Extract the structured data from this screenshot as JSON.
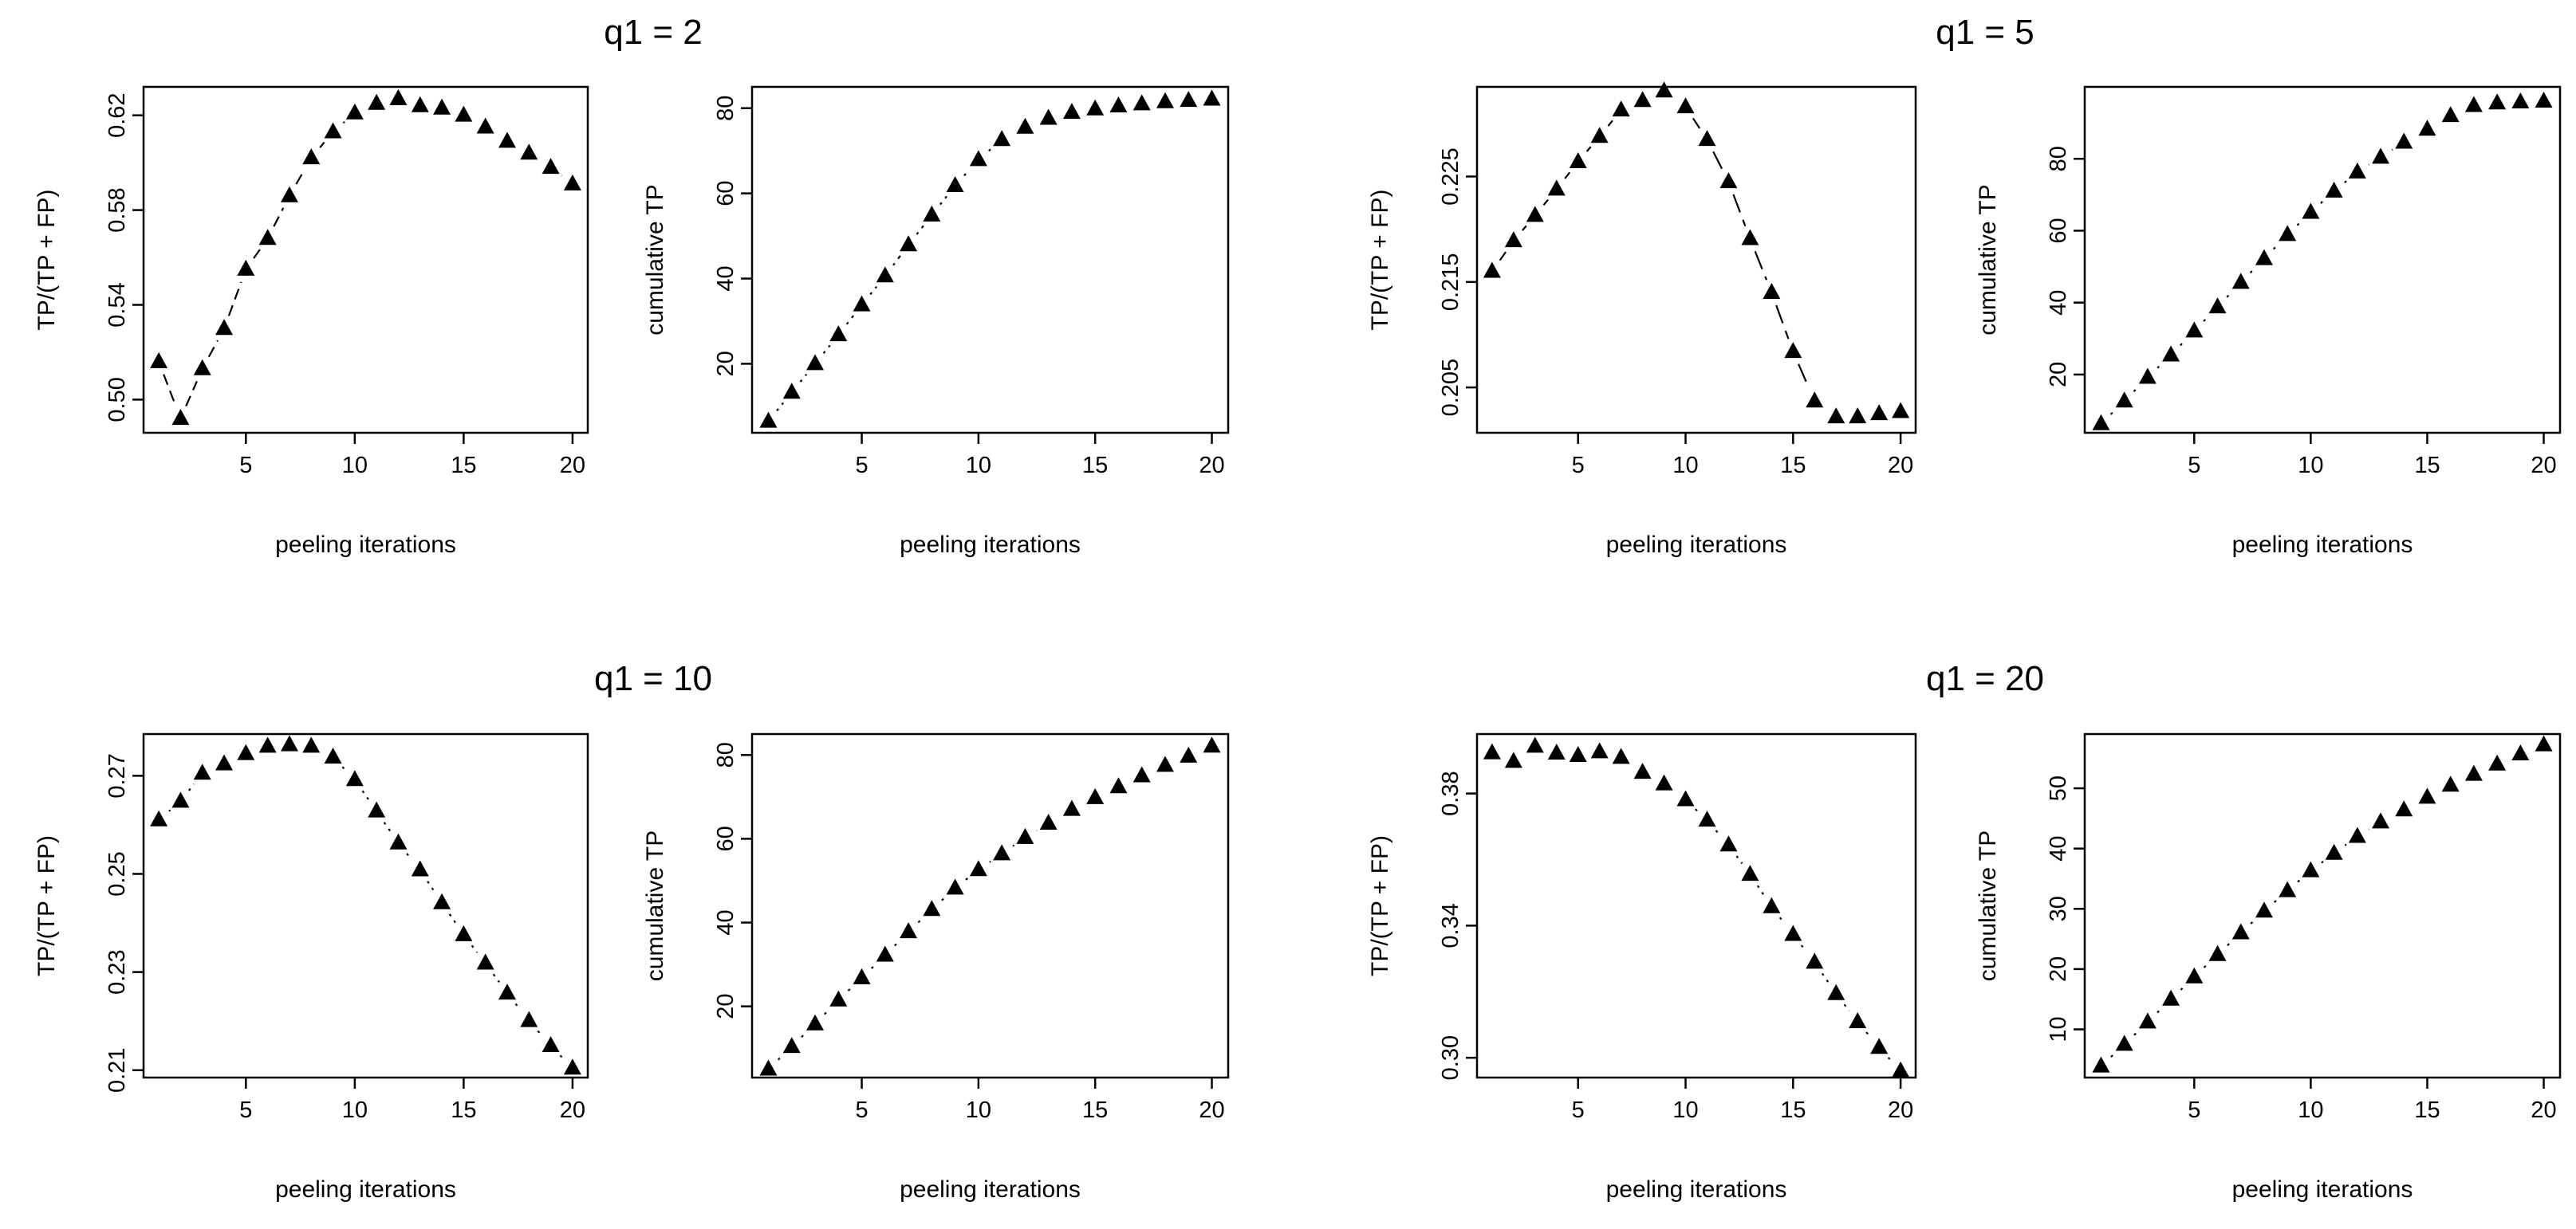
{
  "figure": {
    "groups": [
      {
        "title": "q1 = 2"
      },
      {
        "title": "q1 = 5"
      },
      {
        "title": "q1 = 10"
      },
      {
        "title": "q1 = 20"
      }
    ]
  },
  "chart_data": [
    {
      "type": "line",
      "group": "q1 = 2",
      "title": "",
      "xlabel": "peeling iterations",
      "ylabel": "TP/(TP + FP)",
      "xlim": [
        0.3,
        20.7
      ],
      "ylim": [
        0.486,
        0.632
      ],
      "xticks": [
        5,
        10,
        15,
        20
      ],
      "yticks": [
        0.5,
        0.54,
        0.58,
        0.62
      ],
      "ytick_labels": [
        "0.50",
        "0.54",
        "0.58",
        "0.62"
      ],
      "line_style": "dashed",
      "marker": "triangle",
      "x": [
        1,
        2,
        3,
        4,
        5,
        6,
        7,
        8,
        9,
        10,
        11,
        12,
        13,
        14,
        15,
        16,
        17,
        18,
        19,
        20
      ],
      "y": [
        0.516,
        0.492,
        0.513,
        0.53,
        0.555,
        0.568,
        0.586,
        0.602,
        0.613,
        0.621,
        0.625,
        0.627,
        0.624,
        0.623,
        0.62,
        0.615,
        0.609,
        0.604,
        0.598,
        0.591
      ]
    },
    {
      "type": "line",
      "group": "q1 = 2",
      "title": "",
      "xlabel": "peeling iterations",
      "ylabel": "cumulative TP",
      "xlim": [
        0.3,
        20.7
      ],
      "ylim": [
        3.8,
        85
      ],
      "xticks": [
        5,
        10,
        15,
        20
      ],
      "yticks": [
        20,
        40,
        60,
        80
      ],
      "ytick_labels": [
        "20",
        "40",
        "60",
        "80"
      ],
      "line_style": "dotdash",
      "marker": "triangle",
      "x": [
        1,
        2,
        3,
        4,
        5,
        6,
        7,
        8,
        9,
        10,
        11,
        12,
        13,
        14,
        15,
        16,
        17,
        18,
        19,
        20
      ],
      "y": [
        6.5,
        13.3,
        20.0,
        26.8,
        33.8,
        40.6,
        47.9,
        54.9,
        61.8,
        67.9,
        72.6,
        75.5,
        77.6,
        79.0,
        79.8,
        80.5,
        81.0,
        81.5,
        81.8,
        82.1
      ]
    },
    {
      "type": "line",
      "group": "q1 = 5",
      "title": "",
      "xlabel": "peeling iterations",
      "ylabel": "TP/(TP + FP)",
      "xlim": [
        0.3,
        20.7
      ],
      "ylim": [
        0.2007,
        0.2335
      ],
      "xticks": [
        5,
        10,
        15,
        20
      ],
      "yticks": [
        0.205,
        0.215,
        0.225
      ],
      "ytick_labels": [
        "0.205",
        "0.215",
        "0.225"
      ],
      "line_style": "longdash",
      "marker": "triangle",
      "x": [
        1,
        2,
        3,
        4,
        5,
        6,
        7,
        8,
        9,
        10,
        11,
        12,
        13,
        14,
        15,
        16,
        17,
        18,
        19,
        20
      ],
      "y": [
        0.216,
        0.2189,
        0.2213,
        0.2238,
        0.2264,
        0.2288,
        0.2313,
        0.2322,
        0.2331,
        0.2316,
        0.2285,
        0.2245,
        0.2191,
        0.214,
        0.2084,
        0.2037,
        0.2022,
        0.2022,
        0.2025,
        0.2027
      ]
    },
    {
      "type": "line",
      "group": "q1 = 5",
      "title": "",
      "xlabel": "peeling iterations",
      "ylabel": "cumulative TP",
      "xlim": [
        0.3,
        20.7
      ],
      "ylim": [
        3.8,
        100
      ],
      "xticks": [
        5,
        10,
        15,
        20
      ],
      "yticks": [
        20,
        40,
        60,
        80
      ],
      "ytick_labels": [
        "20",
        "40",
        "60",
        "80"
      ],
      "line_style": "dotdash",
      "marker": "triangle",
      "x": [
        1,
        2,
        3,
        4,
        5,
        6,
        7,
        8,
        9,
        10,
        11,
        12,
        13,
        14,
        15,
        16,
        17,
        18,
        19,
        20
      ],
      "y": [
        6.3,
        12.6,
        19.2,
        25.4,
        32.1,
        38.8,
        45.6,
        52.2,
        58.9,
        65.1,
        71.0,
        76.3,
        80.4,
        84.6,
        88.2,
        92.0,
        94.8,
        95.5,
        95.8,
        96.0
      ]
    },
    {
      "type": "line",
      "group": "q1 = 10",
      "title": "",
      "xlabel": "peeling iterations",
      "ylabel": "TP/(TP + FP)",
      "xlim": [
        0.3,
        20.7
      ],
      "ylim": [
        0.2085,
        0.2785
      ],
      "xticks": [
        5,
        10,
        15,
        20
      ],
      "yticks": [
        0.21,
        0.23,
        0.25,
        0.27
      ],
      "ytick_labels": [
        "0.21",
        "0.23",
        "0.25",
        "0.27"
      ],
      "line_style": "dotted",
      "marker": "triangle",
      "x": [
        1,
        2,
        3,
        4,
        5,
        6,
        7,
        8,
        9,
        10,
        11,
        12,
        13,
        14,
        15,
        16,
        17,
        18,
        19,
        20
      ],
      "y": [
        0.261,
        0.2648,
        0.2705,
        0.2724,
        0.2745,
        0.276,
        0.2763,
        0.276,
        0.2738,
        0.2692,
        0.2628,
        0.2563,
        0.2508,
        0.2441,
        0.2376,
        0.2318,
        0.2257,
        0.2201,
        0.215,
        0.2104
      ]
    },
    {
      "type": "line",
      "group": "q1 = 10",
      "title": "",
      "xlabel": "peeling iterations",
      "ylabel": "cumulative TP",
      "xlim": [
        0.3,
        20.7
      ],
      "ylim": [
        3,
        85
      ],
      "xticks": [
        5,
        10,
        15,
        20
      ],
      "yticks": [
        20,
        40,
        60,
        80
      ],
      "ytick_labels": [
        "20",
        "40",
        "60",
        "80"
      ],
      "line_style": "dotdash",
      "marker": "triangle",
      "x": [
        1,
        2,
        3,
        4,
        5,
        6,
        7,
        8,
        9,
        10,
        11,
        12,
        13,
        14,
        15,
        16,
        17,
        18,
        19,
        20
      ],
      "y": [
        5.0,
        10.4,
        15.8,
        21.5,
        26.8,
        32.2,
        37.8,
        43.1,
        48.2,
        52.6,
        56.4,
        60.3,
        63.7,
        67.0,
        69.8,
        72.4,
        75.0,
        77.5,
        79.7,
        82.1
      ]
    },
    {
      "type": "line",
      "group": "q1 = 20",
      "title": "",
      "xlabel": "peeling iterations",
      "ylabel": "TP/(TP + FP)",
      "xlim": [
        0.3,
        20.7
      ],
      "ylim": [
        0.294,
        0.398
      ],
      "xticks": [
        5,
        10,
        15,
        20
      ],
      "yticks": [
        0.3,
        0.34,
        0.38
      ],
      "ytick_labels": [
        "0.30",
        "0.34",
        "0.38"
      ],
      "line_style": "dotted",
      "marker": "triangle",
      "x": [
        1,
        2,
        3,
        4,
        5,
        6,
        7,
        8,
        9,
        10,
        11,
        12,
        13,
        14,
        15,
        16,
        17,
        18,
        19,
        20
      ],
      "y": [
        0.3923,
        0.3897,
        0.3943,
        0.3922,
        0.3915,
        0.3926,
        0.3909,
        0.3864,
        0.3829,
        0.3781,
        0.3719,
        0.3644,
        0.3555,
        0.3457,
        0.3373,
        0.3289,
        0.3194,
        0.3109,
        0.3031,
        0.296
      ]
    },
    {
      "type": "line",
      "group": "q1 = 20",
      "title": "",
      "xlabel": "peeling iterations",
      "ylabel": "cumulative TP",
      "xlim": [
        0.3,
        20.7
      ],
      "ylim": [
        2,
        59
      ],
      "xticks": [
        5,
        10,
        15,
        20
      ],
      "yticks": [
        10,
        20,
        30,
        40,
        50
      ],
      "ytick_labels": [
        "10",
        "20",
        "30",
        "40",
        "50"
      ],
      "line_style": "dotdash",
      "marker": "triangle",
      "x": [
        1,
        2,
        3,
        4,
        5,
        6,
        7,
        8,
        9,
        10,
        11,
        12,
        13,
        14,
        15,
        16,
        17,
        18,
        19,
        20
      ],
      "y": [
        3.9,
        7.5,
        11.2,
        15.0,
        18.7,
        22.4,
        26.0,
        29.6,
        33.0,
        36.3,
        39.2,
        42.0,
        44.4,
        46.4,
        48.5,
        50.5,
        52.3,
        54.0,
        55.7,
        57.2
      ]
    }
  ]
}
